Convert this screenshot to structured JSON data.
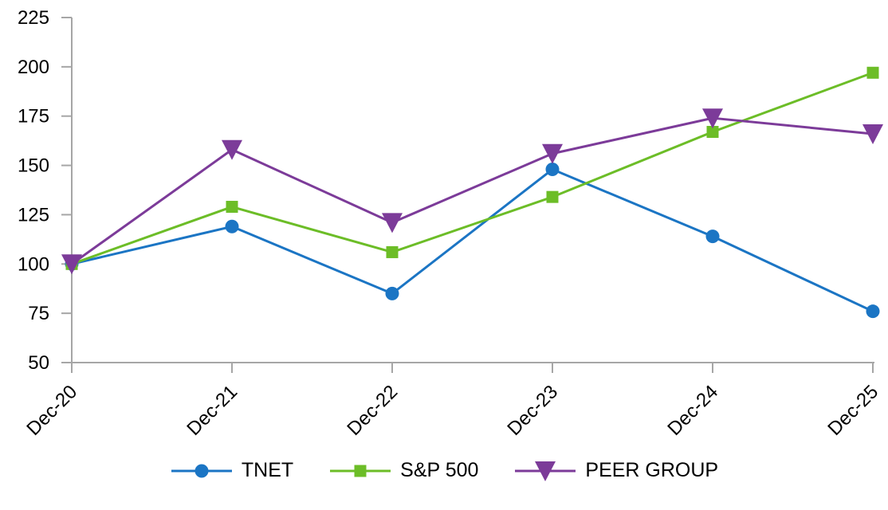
{
  "chart_data": {
    "type": "line",
    "title": "",
    "xlabel": "",
    "ylabel": "",
    "categories": [
      "Dec-20",
      "Dec-21",
      "Dec-22",
      "Dec-23",
      "Dec-24",
      "Dec-25"
    ],
    "series": [
      {
        "name": "TNET",
        "marker": "circle",
        "color": "#1B75C4",
        "values": [
          100,
          119,
          85,
          148,
          114,
          76
        ]
      },
      {
        "name": "S&P 500",
        "marker": "square",
        "color": "#6CBD27",
        "values": [
          100,
          129,
          106,
          134,
          167,
          197
        ]
      },
      {
        "name": "PEER GROUP",
        "marker": "triangle-down",
        "color": "#7C3B99",
        "values": [
          100,
          158,
          121,
          156,
          174,
          166
        ]
      }
    ],
    "ylim": [
      50,
      225
    ],
    "yticks": [
      50,
      75,
      100,
      125,
      150,
      175,
      200,
      225
    ],
    "grid": false,
    "legend_position": "bottom",
    "axis_color": "#A6A6A6",
    "text_color": "#000000"
  }
}
